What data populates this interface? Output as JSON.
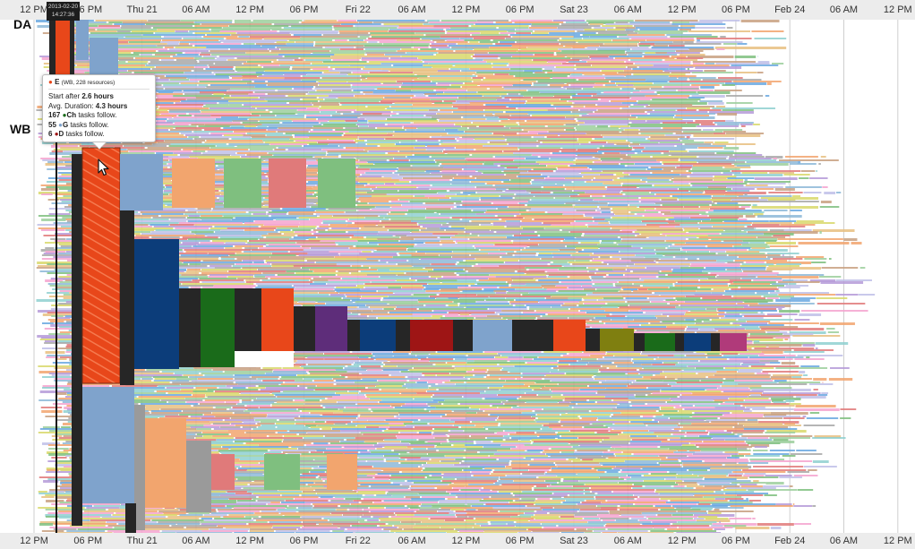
{
  "timeline": {
    "timestamp_lines": [
      "2013-02-20",
      "14:27:36"
    ],
    "ticks": [
      "12 PM",
      "06 PM",
      "Thu 21",
      "06 AM",
      "12 PM",
      "06 PM",
      "Fri 22",
      "06 AM",
      "12 PM",
      "06 PM",
      "Sat 23",
      "06 AM",
      "12 PM",
      "06 PM",
      "Feb 24",
      "06 AM",
      "12 PM"
    ]
  },
  "lanes": {
    "da_label": "DA",
    "wb_label": "WB"
  },
  "tooltip": {
    "dot": "●",
    "task_name": "E",
    "task_sub": "(WB, 228 resources)",
    "start_prefix": "Start after ",
    "start_value": "2.6 hours",
    "duration_prefix": "Avg. Duration: ",
    "duration_value": "4.3 hours",
    "follow1_count": "167",
    "follow1_dot": "●",
    "follow1_name": "Ch",
    "follow1_suffix": " tasks follow.",
    "follow2_count": "55",
    "follow2_dot": "●",
    "follow2_name": "G",
    "follow2_suffix": " tasks follow.",
    "follow3_count": "6",
    "follow3_dot": "●",
    "follow3_name": "D",
    "follow3_suffix": " tasks follow."
  },
  "colors": {
    "selected_task": "#e8471a",
    "navy": "#0c3d7a",
    "dark": "#262626",
    "green": "#1a6b1a",
    "crimson": "#9e1515",
    "purple": "#5e2d7a",
    "olive": "#7f7f10",
    "magenta": "#b03a7a",
    "steel_blue": "#7fa3cc",
    "grey": "#9a9a9a",
    "tooltip_dot_e": "#e8471a",
    "tooltip_dot_ch": "#1a6b1a",
    "tooltip_dot_g": "#7fa3cc",
    "tooltip_dot_d": "#9e1515"
  },
  "icons": {
    "cursor": "mouse-pointer-icon"
  }
}
